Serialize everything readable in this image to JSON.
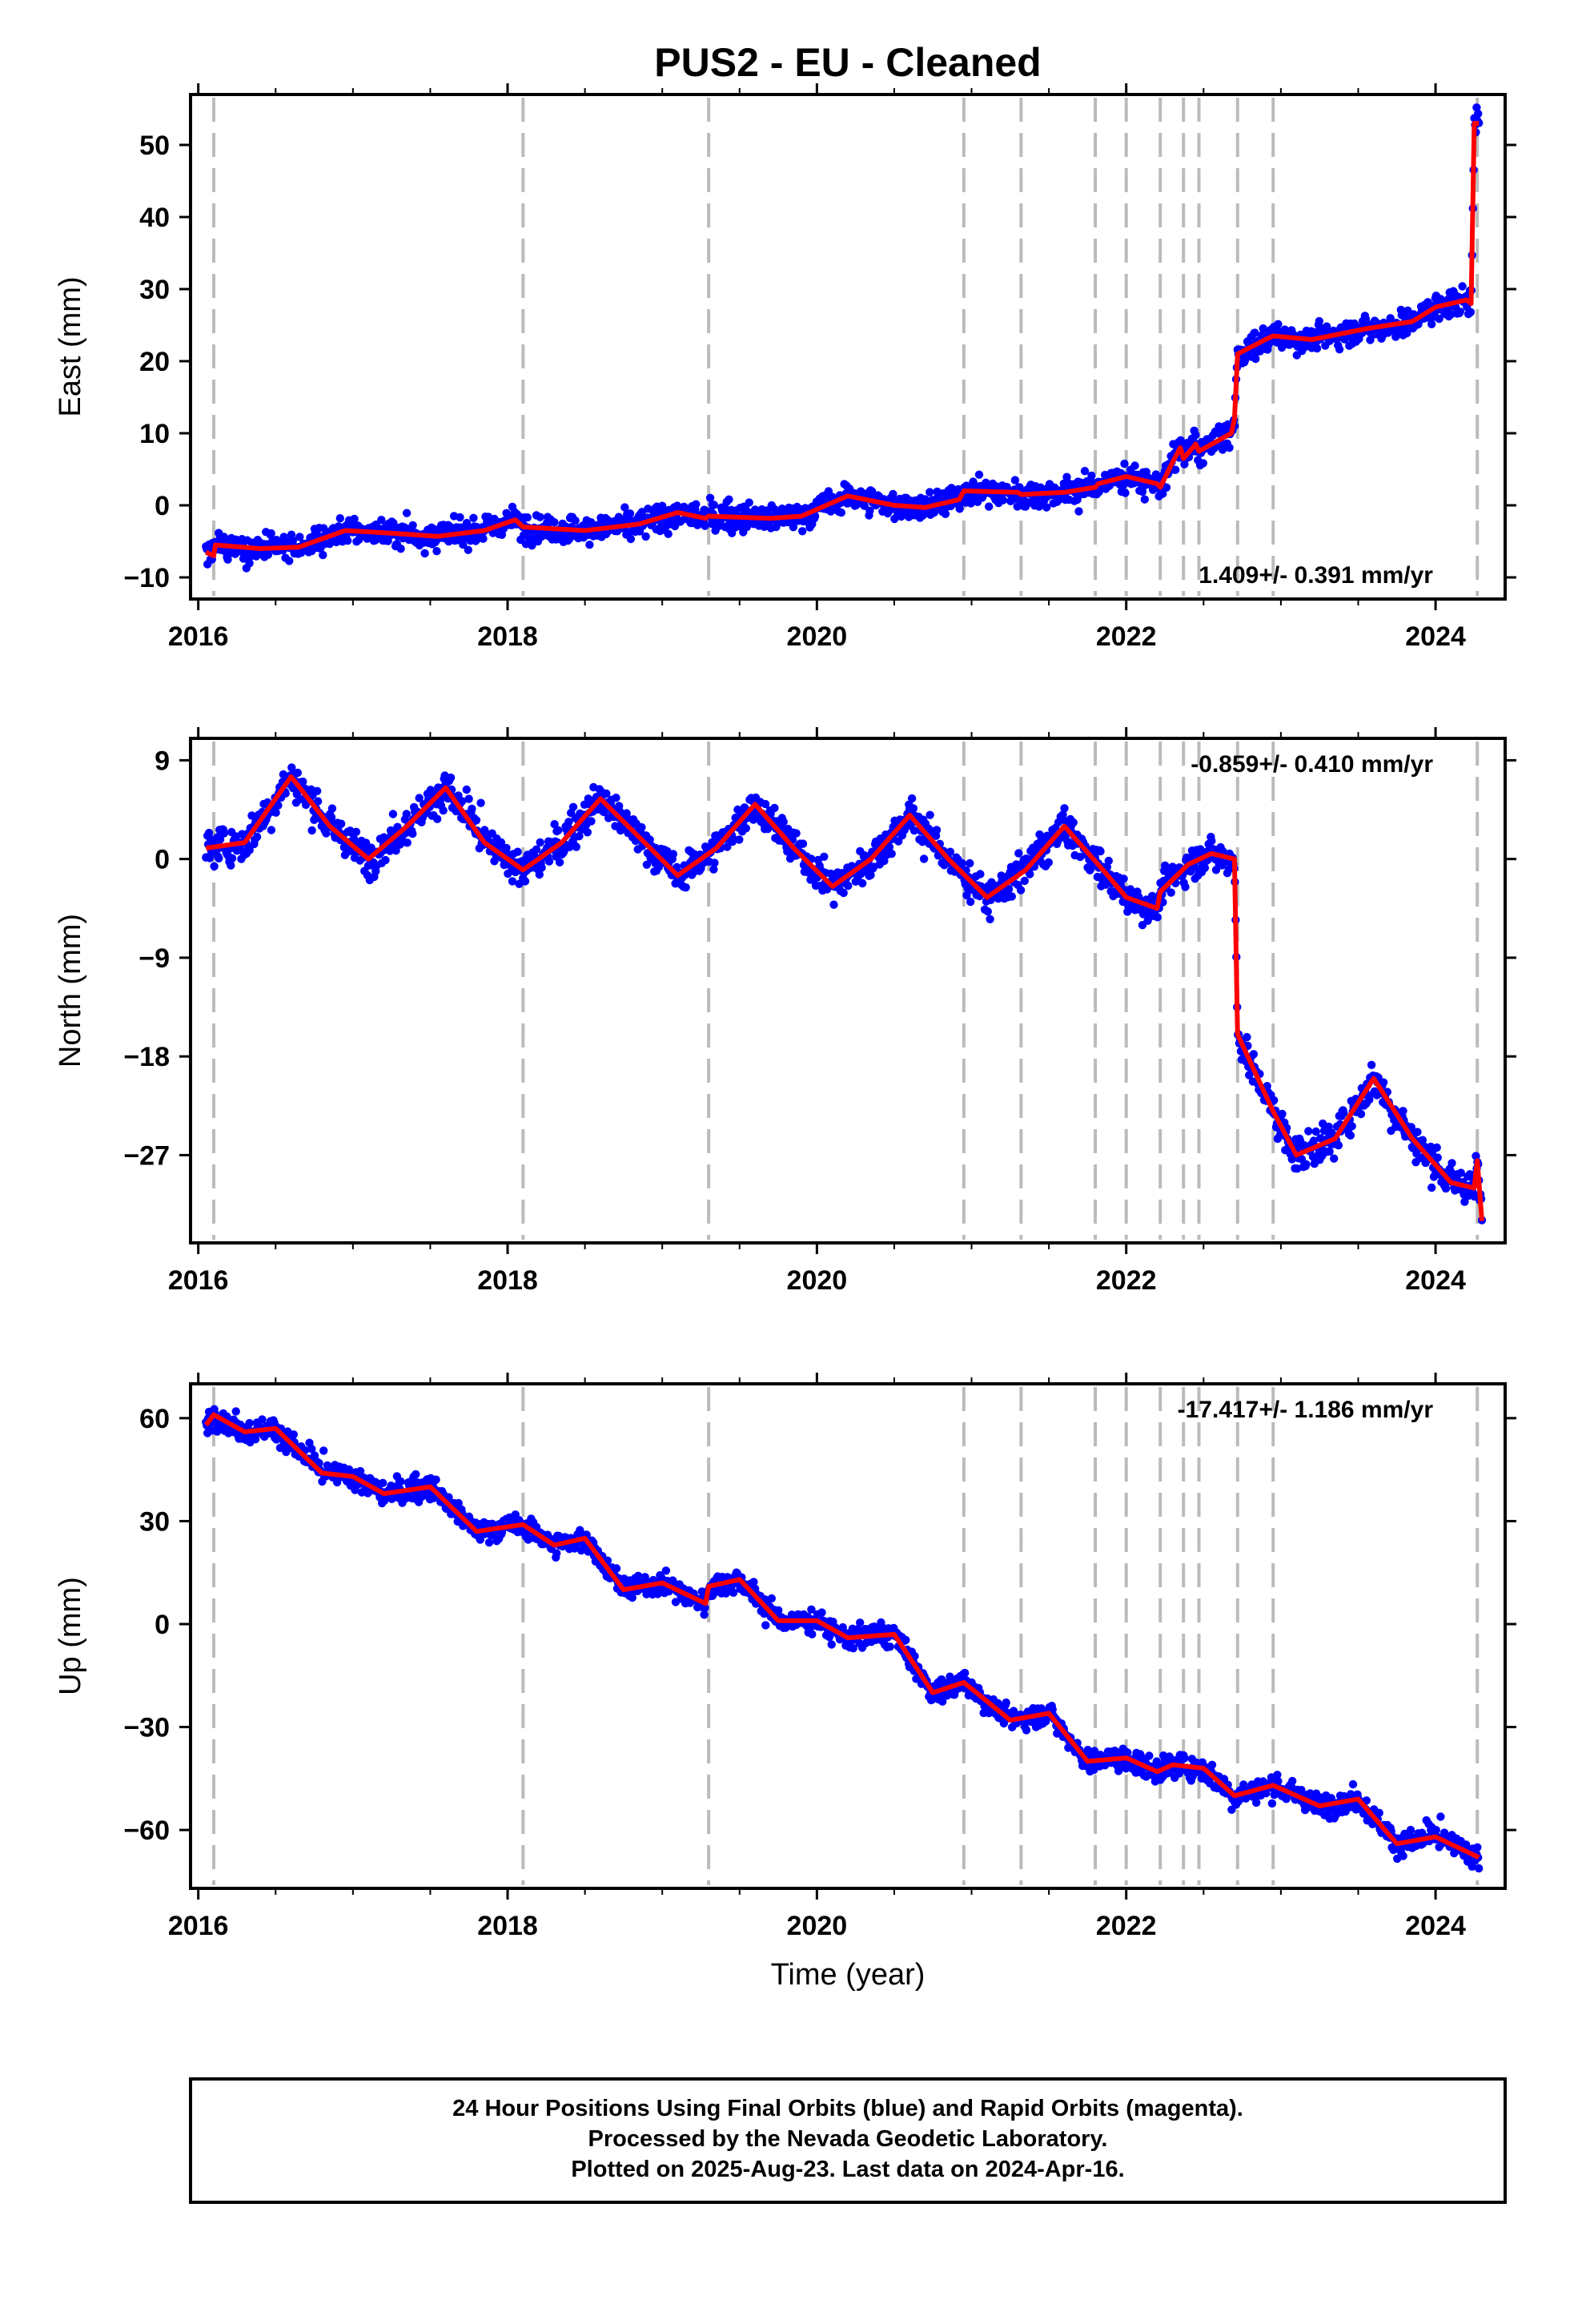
{
  "chart_data": [
    {
      "type": "scatter",
      "title": "PUS2  - EU - Cleaned",
      "ylabel": "East (mm)",
      "xlabel": "",
      "xlim": [
        2015.95,
        2024.45
      ],
      "ylim": [
        -13,
        57
      ],
      "x_ticks": [
        2016,
        2018,
        2020,
        2022,
        2024
      ],
      "y_ticks": [
        -10,
        0,
        10,
        20,
        30,
        40,
        50
      ],
      "annotation": "1.409+/- 0.391 mm/yr",
      "points_color": "#0000ff",
      "model_color": "#ff0000",
      "model_line": {
        "x": [
          2016.05,
          2016.1,
          2016.11,
          2016.4,
          2016.65,
          2016.95,
          2017.2,
          2017.55,
          2017.85,
          2018.05,
          2018.1,
          2018.5,
          2018.85,
          2019.1,
          2019.28,
          2019.3,
          2019.7,
          2019.9,
          2020.2,
          2020.5,
          2020.7,
          2020.92,
          2020.95,
          2021.3,
          2021.32,
          2021.6,
          2021.8,
          2021.82,
          2022.0,
          2022.2,
          2022.22,
          2022.3,
          2022.35,
          2022.37,
          2022.45,
          2022.47,
          2022.68,
          2022.7,
          2022.72,
          2022.9,
          2022.95,
          2023.2,
          2023.55,
          2023.85,
          2024.0,
          2024.2,
          2024.23,
          2024.25,
          2024.28
        ],
        "y": [
          -6.5,
          -7.0,
          -5.5,
          -6.0,
          -5.8,
          -3.5,
          -3.8,
          -4.3,
          -3.5,
          -2.0,
          -3.0,
          -3.5,
          -2.6,
          -1.0,
          -1.8,
          -1.5,
          -1.8,
          -1.5,
          1.3,
          0.0,
          -0.3,
          0.8,
          2.0,
          1.8,
          1.5,
          1.8,
          2.5,
          3.0,
          4.0,
          3.0,
          2.5,
          6.0,
          8.0,
          6.5,
          8.5,
          7.5,
          10.0,
          12.0,
          21.0,
          23.0,
          23.5,
          23.0,
          24.5,
          25.5,
          27.5,
          28.5,
          28.0,
          53.0,
          53.0
        ]
      },
      "scatter_note": "dense daily positions around the model with about ±2.5 mm scatter"
    },
    {
      "type": "scatter",
      "ylabel": "North (mm)",
      "xlabel": "",
      "xlim": [
        2015.95,
        2024.45
      ],
      "ylim": [
        -35,
        11
      ],
      "x_ticks": [
        2016,
        2018,
        2020,
        2022,
        2024
      ],
      "y_ticks": [
        9,
        0,
        -9,
        -18,
        -27
      ],
      "annotation": "-0.859+/- 0.410 mm/yr",
      "points_color": "#0000ff",
      "model_color": "#ff0000",
      "model_line": {
        "x": [
          2016.05,
          2016.3,
          2016.6,
          2016.85,
          2017.1,
          2017.35,
          2017.6,
          2017.85,
          2018.1,
          2018.35,
          2018.6,
          2018.85,
          2019.1,
          2019.35,
          2019.6,
          2019.85,
          2020.1,
          2020.35,
          2020.6,
          2020.85,
          2021.1,
          2021.35,
          2021.6,
          2021.85,
          2022.0,
          2022.2,
          2022.22,
          2022.4,
          2022.55,
          2022.7,
          2022.72,
          2022.95,
          2023.1,
          2023.35,
          2023.6,
          2023.85,
          2024.1,
          2024.25,
          2024.27,
          2024.3
        ],
        "y": [
          1.0,
          1.5,
          7.5,
          3.0,
          0.0,
          3.0,
          6.5,
          1.5,
          -1.0,
          1.5,
          5.5,
          2.0,
          -1.5,
          1.0,
          5.0,
          1.0,
          -2.5,
          0.0,
          4.0,
          0.0,
          -3.5,
          -1.0,
          3.0,
          -1.0,
          -3.5,
          -4.5,
          -3.0,
          -0.5,
          0.5,
          0.0,
          -16.0,
          -23.0,
          -27.0,
          -25.5,
          -20.0,
          -25.5,
          -29.5,
          -30.0,
          -27.5,
          -33.0
        ]
      },
      "scatter_note": "dense daily positions around the model with about ±2 mm scatter"
    },
    {
      "type": "scatter",
      "ylabel": "Up (mm)",
      "xlabel": "Time (year)",
      "xlim": [
        2015.95,
        2024.45
      ],
      "ylim": [
        -77,
        70
      ],
      "x_ticks": [
        2016,
        2018,
        2020,
        2022,
        2024
      ],
      "y_ticks": [
        60,
        30,
        0,
        -30,
        -60
      ],
      "annotation": "-17.417+/- 1.186 mm/yr",
      "points_color": "#0000ff",
      "model_color": "#ff0000",
      "model_line": {
        "x": [
          2016.05,
          2016.1,
          2016.3,
          2016.5,
          2016.8,
          2017.0,
          2017.2,
          2017.5,
          2017.8,
          2018.1,
          2018.3,
          2018.5,
          2018.75,
          2019.0,
          2019.28,
          2019.3,
          2019.5,
          2019.75,
          2020.0,
          2020.2,
          2020.5,
          2020.75,
          2020.95,
          2021.25,
          2021.5,
          2021.75,
          2022.0,
          2022.2,
          2022.3,
          2022.5,
          2022.7,
          2022.95,
          2023.25,
          2023.5,
          2023.75,
          2024.0,
          2024.28
        ],
        "y": [
          58.0,
          61.0,
          56.0,
          57.0,
          44.0,
          43.0,
          38.0,
          40.0,
          27.0,
          29.0,
          23.0,
          25.0,
          10.0,
          12.0,
          6.0,
          11.0,
          13.0,
          1.0,
          1.0,
          -4.0,
          -3.0,
          -20.0,
          -17.0,
          -28.0,
          -26.0,
          -40.0,
          -39.0,
          -43.0,
          -41.0,
          -42.0,
          -50.0,
          -47.0,
          -53.0,
          -51.0,
          -64.0,
          -62.0,
          -68.0
        ]
      },
      "scatter_note": "dense daily positions around the model with about ±4 mm scatter"
    }
  ],
  "event_lines": [
    2016.1,
    2018.1,
    2019.3,
    2020.95,
    2021.32,
    2021.8,
    2022.0,
    2022.22,
    2022.37,
    2022.47,
    2022.72,
    2022.95,
    2024.27
  ],
  "footer": {
    "line1": "24 Hour Positions Using Final Orbits (blue) and Rapid Orbits (magenta).",
    "line2": "Processed by the Nevada Geodetic Laboratory.",
    "line3": "Plotted on 2025-Aug-23. Last data on 2024-Apr-16."
  }
}
